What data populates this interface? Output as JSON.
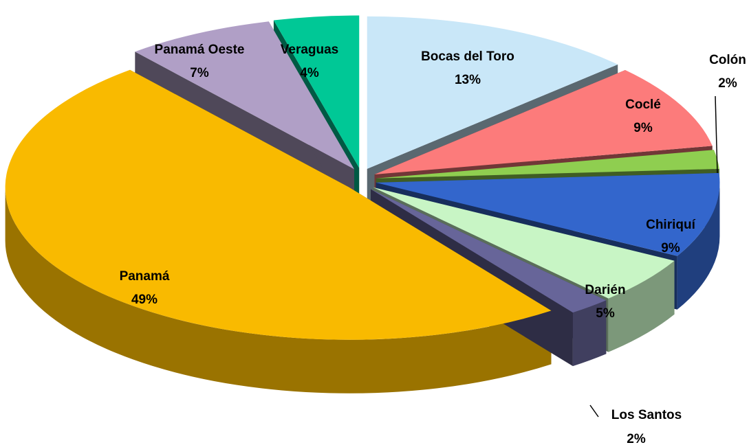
{
  "chart_data": {
    "type": "pie",
    "categories": [
      "Bocas del Toro",
      "Coclé",
      "Colón",
      "Chiriquí",
      "Darién",
      "Los Santos",
      "Panamá",
      "Panamá Oeste",
      "Veraguas"
    ],
    "values": [
      13,
      9,
      2,
      9,
      5,
      2,
      49,
      7,
      4
    ],
    "value_labels": [
      "13%",
      "9%",
      "2%",
      "9%",
      "5%",
      "2%",
      "49%",
      "7%",
      "4%"
    ],
    "colors": [
      "#c9e7f8",
      "#fc7b7b",
      "#8fce50",
      "#3366cc",
      "#c8f5c5",
      "#676599",
      "#f9ba00",
      "#b09fc6",
      "#00c896"
    ]
  }
}
